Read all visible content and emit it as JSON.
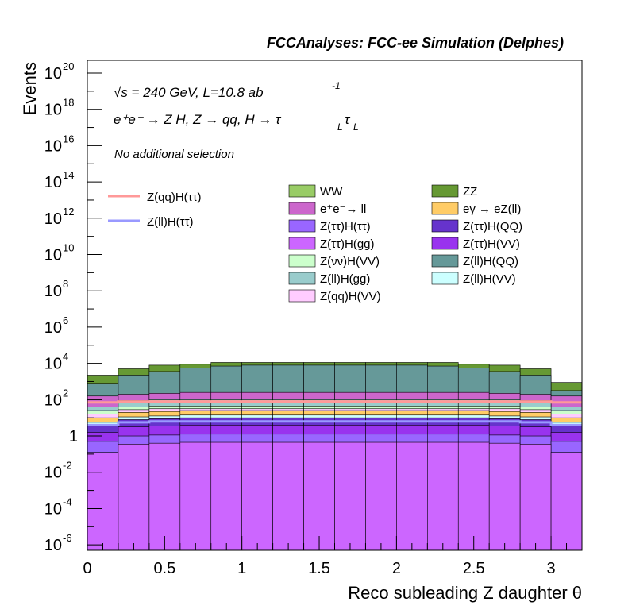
{
  "chart_data": {
    "type": "stacked-histogram",
    "title": "FCCAnalyses: FCC-ee Simulation (Delphes)",
    "xlabel": "Reco subleading Z daughter θ",
    "ylabel": "Events",
    "xlim": [
      0,
      3.2
    ],
    "ylim_log10": [
      -6.3,
      20.7
    ],
    "yscale": "log",
    "x_ticks": [
      "0",
      "0.5",
      "1",
      "1.5",
      "2",
      "2.5",
      "3"
    ],
    "y_ticks": [
      {
        "log10": 20,
        "label": "10",
        "exp": "20"
      },
      {
        "log10": 18,
        "label": "10",
        "exp": "18"
      },
      {
        "log10": 16,
        "label": "10",
        "exp": "16"
      },
      {
        "log10": 14,
        "label": "10",
        "exp": "14"
      },
      {
        "log10": 12,
        "label": "10",
        "exp": "12"
      },
      {
        "log10": 10,
        "label": "10",
        "exp": "10"
      },
      {
        "log10": 8,
        "label": "10",
        "exp": "8"
      },
      {
        "log10": 6,
        "label": "10",
        "exp": "6"
      },
      {
        "log10": 4,
        "label": "10",
        "exp": "4"
      },
      {
        "log10": 2,
        "label": "10",
        "exp": "2"
      },
      {
        "log10": 0,
        "label": "1",
        "exp": ""
      },
      {
        "log10": -2,
        "label": "10",
        "exp": "-2"
      },
      {
        "log10": -4,
        "label": "10",
        "exp": "-4"
      },
      {
        "log10": -6,
        "label": "10",
        "exp": "-6"
      }
    ],
    "bin_edges": [
      0,
      0.2,
      0.4,
      0.6,
      0.8,
      1.0,
      1.2,
      1.4,
      1.6,
      1.8,
      2.0,
      2.2,
      2.4,
      2.6,
      2.8,
      3.0,
      3.2
    ],
    "stack_log10_cumulative": [
      {
        "name": "Z(ττ)H(gg)",
        "color": "#cc66ff",
        "values": [
          -0.9,
          -0.45,
          -0.4,
          -0.35,
          -0.35,
          -0.35,
          -0.35,
          -0.35,
          -0.35,
          -0.35,
          -0.35,
          -0.35,
          -0.35,
          -0.4,
          -0.45,
          -0.9
        ]
      },
      {
        "name": "Z(ττ)H(ττ)",
        "color": "#9966ff",
        "values": [
          -0.3,
          0.0,
          0.05,
          0.1,
          0.1,
          0.1,
          0.1,
          0.1,
          0.1,
          0.1,
          0.1,
          0.1,
          0.1,
          0.05,
          0.0,
          -0.3
        ]
      },
      {
        "name": "Z(ττ)H(VV)",
        "color": "#9933ee",
        "values": [
          0.2,
          0.5,
          0.55,
          0.6,
          0.6,
          0.6,
          0.6,
          0.6,
          0.6,
          0.6,
          0.6,
          0.6,
          0.6,
          0.55,
          0.5,
          0.2
        ]
      },
      {
        "name": "Z(ττ)H(QQ)",
        "color": "#6633cc",
        "values": [
          0.6,
          0.9,
          0.95,
          1.0,
          1.0,
          1.0,
          1.0,
          1.0,
          1.0,
          1.0,
          1.0,
          1.0,
          1.0,
          0.95,
          0.9,
          0.6
        ]
      },
      {
        "name": "Z(ll)H(VV)",
        "color": "#ccffff",
        "values": [
          0.75,
          1.05,
          1.1,
          1.15,
          1.15,
          1.15,
          1.15,
          1.15,
          1.15,
          1.15,
          1.15,
          1.15,
          1.15,
          1.1,
          1.05,
          0.75
        ]
      },
      {
        "name": "eγ → eZ(ll)",
        "color": "#ffcc66",
        "values": [
          1.0,
          1.3,
          1.35,
          1.4,
          1.4,
          1.4,
          1.4,
          1.4,
          1.4,
          1.4,
          1.4,
          1.4,
          1.4,
          1.35,
          1.3,
          1.0
        ]
      },
      {
        "name": "Z(qq)H(VV)",
        "color": "#ffccff",
        "values": [
          1.2,
          1.45,
          1.5,
          1.5,
          1.5,
          1.5,
          1.5,
          1.5,
          1.5,
          1.5,
          1.5,
          1.5,
          1.5,
          1.5,
          1.45,
          1.2
        ]
      },
      {
        "name": "Z(νν)H(VV)",
        "color": "#ccffcc",
        "values": [
          1.4,
          1.6,
          1.65,
          1.65,
          1.65,
          1.65,
          1.65,
          1.65,
          1.65,
          1.65,
          1.65,
          1.65,
          1.65,
          1.65,
          1.6,
          1.4
        ]
      },
      {
        "name": "Z(ll)H(gg)",
        "color": "#99cccc",
        "values": [
          1.6,
          1.95,
          2.0,
          2.0,
          2.0,
          2.0,
          2.0,
          2.0,
          2.0,
          2.0,
          2.0,
          2.0,
          2.0,
          2.0,
          1.95,
          1.6
        ]
      },
      {
        "name": "e⁺e⁻→ ll",
        "color": "#cc66cc",
        "values": [
          2.2,
          2.3,
          2.35,
          2.4,
          2.4,
          2.4,
          2.4,
          2.4,
          2.4,
          2.4,
          2.4,
          2.4,
          2.4,
          2.35,
          2.3,
          2.2
        ]
      },
      {
        "name": "Z(ll)H(QQ)",
        "color": "#669999",
        "values": [
          2.9,
          3.35,
          3.55,
          3.75,
          3.85,
          3.9,
          3.9,
          3.9,
          3.9,
          3.9,
          3.9,
          3.85,
          3.75,
          3.55,
          3.35,
          2.5
        ]
      },
      {
        "name": "ZZ",
        "color": "#669933",
        "values": [
          3.35,
          3.7,
          3.9,
          3.95,
          4.05,
          4.05,
          4.05,
          4.05,
          4.05,
          4.05,
          4.05,
          4.05,
          3.95,
          3.9,
          3.7,
          2.95
        ]
      }
    ],
    "lines_log10": [
      {
        "name": "Z(qq)H(ττ)",
        "color": "#ff9999",
        "values": [
          1.85,
          1.9,
          1.9,
          1.9,
          1.9,
          1.9,
          1.9,
          1.9,
          1.9,
          1.9,
          1.9,
          1.9,
          1.9,
          1.9,
          1.9,
          1.85
        ]
      },
      {
        "name": "Z(ll)H(ττ)",
        "color": "#9999ff",
        "values": [
          0.6,
          0.75,
          0.8,
          0.8,
          0.8,
          0.8,
          0.8,
          0.8,
          0.8,
          0.8,
          0.8,
          0.8,
          0.8,
          0.8,
          0.75,
          0.6
        ]
      }
    ],
    "legend_hist": [
      {
        "label": "WW",
        "color": "#99cc66"
      },
      {
        "label": "ZZ",
        "color": "#669933"
      },
      {
        "label": "e⁺e⁻→ ll",
        "color": "#cc66cc"
      },
      {
        "label": "eγ → eZ(ll)",
        "color": "#ffcc66"
      },
      {
        "label": "Z(ττ)H(ττ)",
        "color": "#9966ff"
      },
      {
        "label": "Z(ττ)H(QQ)",
        "color": "#6633cc"
      },
      {
        "label": "Z(ττ)H(gg)",
        "color": "#cc66ff"
      },
      {
        "label": "Z(ττ)H(VV)",
        "color": "#9933ee"
      },
      {
        "label": "Z(νν)H(VV)",
        "color": "#ccffcc"
      },
      {
        "label": "Z(ll)H(QQ)",
        "color": "#669999"
      },
      {
        "label": "Z(ll)H(gg)",
        "color": "#99cccc"
      },
      {
        "label": "Z(ll)H(VV)",
        "color": "#ccffff"
      },
      {
        "label": "Z(qq)H(VV)",
        "color": "#ffccff"
      }
    ],
    "legend_lines": [
      {
        "label": "Z(qq)H(ττ)",
        "color": "#ff9999"
      },
      {
        "label": "Z(ll)H(ττ)",
        "color": "#9999ff"
      }
    ],
    "annotations": {
      "energy": "√s = 240 GeV, L=10.8 ab",
      "energy_exp": "-1",
      "process": "e⁺e⁻ → Z H, Z → qq, H → τ",
      "process_sub": "L",
      "process_tail": "τ",
      "selection": "No additional selection"
    }
  }
}
